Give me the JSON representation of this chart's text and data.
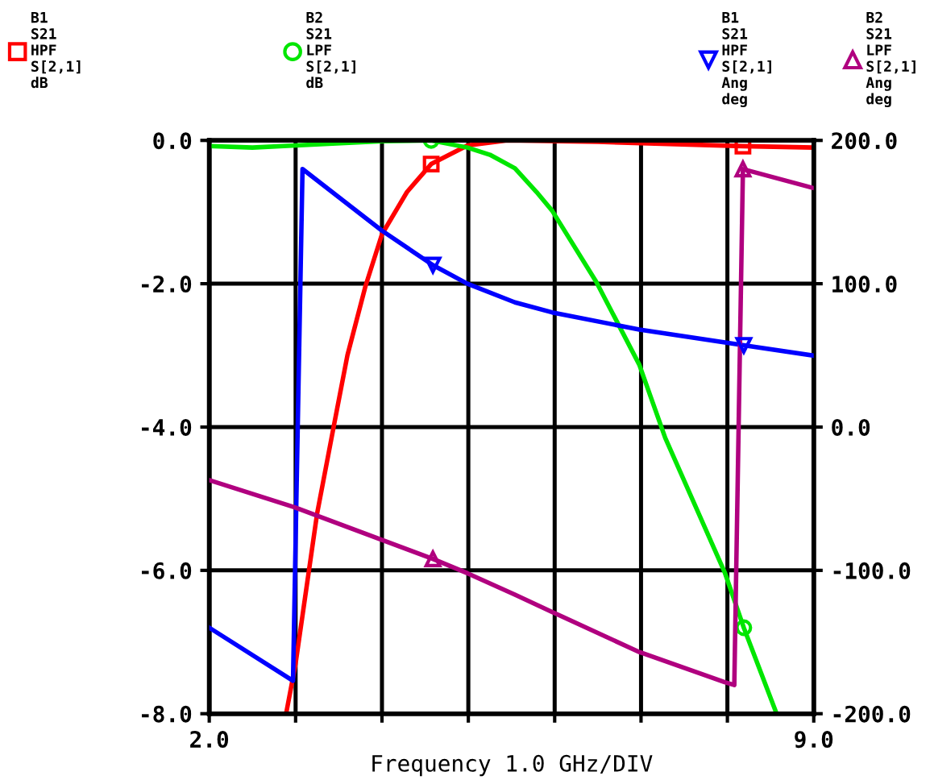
{
  "chart_data": {
    "type": "line",
    "xlabel": "Frequency 1.0 GHz/DIV",
    "legend": "top",
    "grid": true,
    "xlim": [
      2.0,
      9.0
    ],
    "xticks": [
      {
        "value": 2,
        "label": "2.0"
      },
      {
        "value": 3,
        "label": null
      },
      {
        "value": 4,
        "label": null
      },
      {
        "value": 5,
        "label": null
      },
      {
        "value": 6,
        "label": null
      },
      {
        "value": 7,
        "label": null
      },
      {
        "value": 8,
        "label": null
      },
      {
        "value": 9,
        "label": "9.0"
      }
    ],
    "ylim": [
      -8,
      0
    ],
    "yticks": [
      {
        "value": -8,
        "label": "-8.0"
      },
      {
        "value": -6,
        "label": "-6.0"
      },
      {
        "value": -4,
        "label": "-4.0"
      },
      {
        "value": -2,
        "label": "-2.0"
      },
      {
        "value": 0,
        "label": "0.0"
      }
    ],
    "y2lim": [
      -200,
      200
    ],
    "y2ticks": [
      {
        "value": -200,
        "label": "-200.0"
      },
      {
        "value": -100,
        "label": "-100.0"
      },
      {
        "value": 0,
        "label": "0.0"
      },
      {
        "value": 100,
        "label": "100.0"
      },
      {
        "value": 200,
        "label": "200.0"
      }
    ],
    "series": [
      {
        "name": "B1\nS21\nHPF\nS[2,1]\ndB",
        "color": "#ff0000",
        "x": [
          2.89,
          3.0,
          3.25,
          3.44,
          3.6,
          3.81,
          4.0,
          4.29,
          4.57,
          4.99,
          5.45,
          6.5,
          8.18,
          9.0
        ],
        "values": [
          -8.0,
          -7.3,
          -5.2,
          -4.0,
          -3.0,
          -2.03,
          -1.31,
          -0.72,
          -0.33,
          -0.07,
          0.0,
          -0.02,
          -0.08,
          -0.1
        ]
      },
      {
        "type": "scatter",
        "color": "#ff0000",
        "marker": "square",
        "x": [
          4.57,
          8.18
        ],
        "values": [
          -0.33,
          -0.08
        ]
      },
      {
        "name": "B2\nS21\nLPF\nS[2,1]\ndB",
        "color": "#00e600",
        "x": [
          2.0,
          2.5,
          3.0,
          4.0,
          4.57,
          4.99,
          5.25,
          5.54,
          5.79,
          5.97,
          6.48,
          6.98,
          7.28,
          7.97,
          8.19,
          8.57
        ],
        "values": [
          -0.08,
          -0.1,
          -0.07,
          -0.01,
          0.0,
          -0.1,
          -0.2,
          -0.39,
          -0.72,
          -0.98,
          -1.97,
          -3.13,
          -4.15,
          -6.03,
          -6.8,
          -8.0
        ]
      },
      {
        "type": "scatter",
        "color": "#00e600",
        "marker": "circle",
        "x": [
          4.57,
          8.19
        ],
        "values": [
          0.0,
          -6.8
        ]
      },
      {
        "name": "B1\nS21\nHPF\nS[2,1]\nAng\ndeg",
        "color": "#0000ff",
        "axis": "y2",
        "x": [
          2.0,
          2.97,
          3.08,
          4.0,
          4.59,
          4.99,
          5.54,
          5.97,
          6.98,
          8.19,
          8.98
        ],
        "values": [
          -140,
          -177,
          180,
          137,
          113,
          100,
          87,
          80,
          68,
          57,
          50
        ]
      },
      {
        "type": "scatter",
        "color": "#0000ff",
        "marker": "triangle_down",
        "axis": "y2",
        "x": [
          4.59,
          8.19
        ],
        "values": [
          113,
          57
        ]
      },
      {
        "name": "B2\nS21\nLPF\nS[2,1]\nAng\ndeg",
        "color": "#b0007f",
        "axis": "y2",
        "x": [
          2.0,
          2.99,
          4.59,
          4.99,
          5.54,
          5.97,
          6.98,
          7.97,
          8.08,
          8.18,
          8.98
        ],
        "values": [
          -37,
          -56,
          -92,
          -102,
          -117,
          -129,
          -157,
          -178,
          -180,
          180,
          167
        ]
      },
      {
        "type": "scatter",
        "color": "#b0007f",
        "marker": "triangle",
        "axis": "y2",
        "x": [
          4.59,
          8.18
        ],
        "values": [
          -92,
          180
        ]
      }
    ]
  }
}
